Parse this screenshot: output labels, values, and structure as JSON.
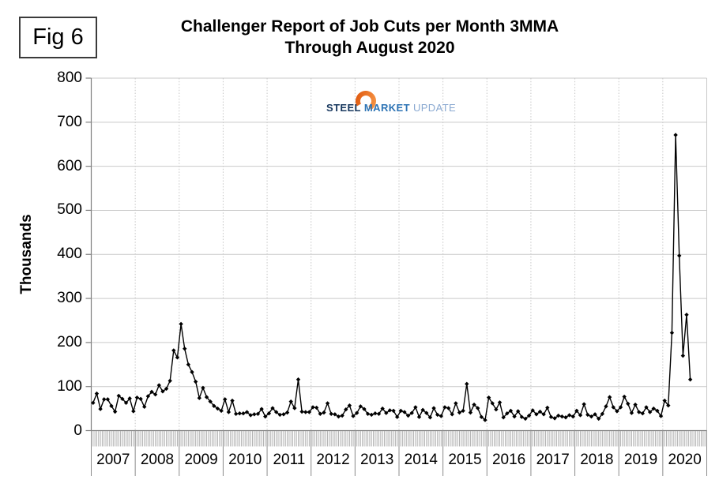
{
  "figure": {
    "label": "Fig 6"
  },
  "title": {
    "line1": "Challenger Report of Job Cuts per Month 3MMA",
    "line2": "Through August 2020"
  },
  "logo": {
    "word1": "STEEL",
    "word2": "MARKET",
    "word3": "UPDATE",
    "colors": {
      "word1": "#17375e",
      "word2": "#2e74b5",
      "word3": "#8aa9d1",
      "swoosh_light": "#f79646",
      "swoosh_dark": "#e05a10"
    }
  },
  "chart_data": {
    "type": "line",
    "title": "Challenger Report of Job Cuts per Month 3MMA Through August 2020",
    "xlabel": "",
    "ylabel": "Thousands",
    "ylim": [
      0,
      800
    ],
    "yticks": [
      0,
      100,
      200,
      300,
      400,
      500,
      600,
      700,
      800
    ],
    "x_years": [
      2007,
      2008,
      2009,
      2010,
      2011,
      2012,
      2013,
      2014,
      2015,
      2016,
      2017,
      2018,
      2019,
      2020
    ],
    "x_start": "2007-01",
    "x_end": "2020-08",
    "grid": {
      "horizontal": "solid",
      "vertical": "dotted-at-year-boundaries"
    },
    "legend_position": "none",
    "colors": {
      "series": "#000000",
      "h_gridline": "#c9c9c9",
      "v_gridline": "#c6c6c6",
      "axis": "#7f7f7f",
      "month_tick": "#b0b0b0",
      "year_divider": "#8c8c8c"
    },
    "series": [
      {
        "name": "Job cuts per month (thousands)",
        "marker": "diamond",
        "values": [
          63,
          84,
          49,
          71,
          71,
          56,
          43,
          79,
          72,
          63,
          73,
          44,
          75,
          72,
          54,
          78,
          88,
          82,
          103,
          89,
          95,
          113,
          182,
          166,
          242,
          186,
          150,
          133,
          111,
          74,
          97,
          76,
          66,
          56,
          50,
          45,
          71,
          42,
          68,
          38,
          39,
          39,
          42,
          35,
          37,
          38,
          49,
          32,
          39,
          51,
          42,
          36,
          37,
          41,
          66,
          51,
          116,
          43,
          42,
          42,
          53,
          52,
          38,
          41,
          62,
          38,
          37,
          32,
          34,
          48,
          57,
          33,
          40,
          55,
          49,
          38,
          36,
          39,
          38,
          50,
          40,
          46,
          45,
          31,
          45,
          42,
          34,
          40,
          53,
          31,
          47,
          40,
          30,
          51,
          36,
          33,
          53,
          51,
          37,
          62,
          41,
          45,
          106,
          41,
          59,
          51,
          31,
          24,
          75,
          62,
          48,
          64,
          30,
          39,
          45,
          32,
          44,
          31,
          27,
          34,
          46,
          37,
          43,
          37,
          52,
          31,
          28,
          34,
          32,
          30,
          35,
          32,
          45,
          35,
          60,
          36,
          32,
          37,
          27,
          38,
          55,
          76,
          53,
          44,
          53,
          77,
          61,
          40,
          59,
          42,
          39,
          53,
          42,
          50,
          45,
          33,
          68,
          57,
          222,
          671,
          397,
          170,
          263,
          116
        ]
      }
    ]
  }
}
